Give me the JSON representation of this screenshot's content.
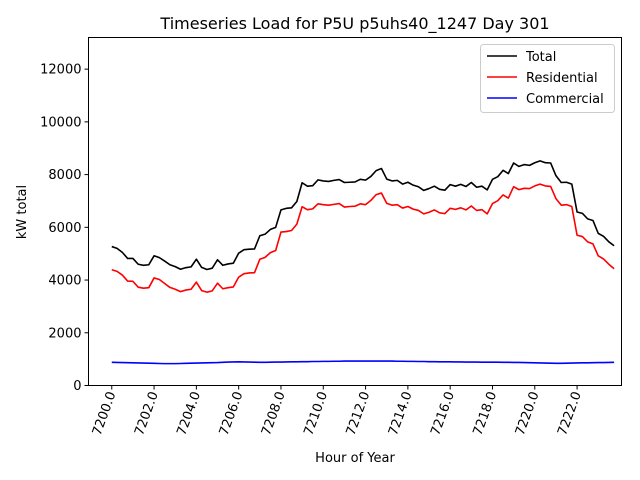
{
  "chart_data": {
    "type": "line",
    "title": "Timeseries Load for P5U p5uhs40_1247  Day 301",
    "xlabel": "Hour of Year",
    "ylabel": "kW total",
    "xlim": [
      7198.9,
      7224.1
    ],
    "ylim": [
      0,
      13200
    ],
    "xticks": [
      7200,
      7202,
      7204,
      7206,
      7208,
      7210,
      7212,
      7214,
      7216,
      7218,
      7220,
      7222
    ],
    "xtick_labels": [
      "7200.0",
      "7202.0",
      "7204.0",
      "7206.0",
      "7208.0",
      "7210.0",
      "7212.0",
      "7214.0",
      "7216.0",
      "7218.0",
      "7220.0",
      "7222.0"
    ],
    "yticks": [
      0,
      2000,
      4000,
      6000,
      8000,
      10000,
      12000
    ],
    "ytick_labels": [
      "0",
      "2000",
      "4000",
      "6000",
      "8000",
      "10000",
      "12000"
    ],
    "legend_position": "top-right",
    "x": [
      7200.0,
      7200.25,
      7200.5,
      7200.75,
      7201.0,
      7201.25,
      7201.5,
      7201.75,
      7202.0,
      7202.25,
      7202.5,
      7202.75,
      7203.0,
      7203.25,
      7203.5,
      7203.75,
      7204.0,
      7204.25,
      7204.5,
      7204.75,
      7205.0,
      7205.25,
      7205.5,
      7205.75,
      7206.0,
      7206.25,
      7206.5,
      7206.75,
      7207.0,
      7207.25,
      7207.5,
      7207.75,
      7208.0,
      7208.25,
      7208.5,
      7208.75,
      7209.0,
      7209.25,
      7209.5,
      7209.75,
      7210.0,
      7210.25,
      7210.5,
      7210.75,
      7211.0,
      7211.25,
      7211.5,
      7211.75,
      7212.0,
      7212.25,
      7212.5,
      7212.75,
      7213.0,
      7213.25,
      7213.5,
      7213.75,
      7214.0,
      7214.25,
      7214.5,
      7214.75,
      7215.0,
      7215.25,
      7215.5,
      7215.75,
      7216.0,
      7216.25,
      7216.5,
      7216.75,
      7217.0,
      7217.25,
      7217.5,
      7217.75,
      7218.0,
      7218.25,
      7218.5,
      7218.75,
      7219.0,
      7219.25,
      7219.5,
      7219.75,
      7220.0,
      7220.25,
      7220.5,
      7220.75,
      7221.0,
      7221.25,
      7221.5,
      7221.75,
      7222.0,
      7222.25,
      7222.5,
      7222.75,
      7223.0,
      7223.25,
      7223.5,
      7223.75
    ],
    "series": [
      {
        "name": "Total",
        "color": "#000000",
        "values": [
          5270,
          5200,
          5050,
          4820,
          4820,
          4600,
          4560,
          4580,
          4920,
          4850,
          4720,
          4580,
          4510,
          4410,
          4470,
          4500,
          4790,
          4480,
          4400,
          4450,
          4770,
          4560,
          4610,
          4640,
          5020,
          5150,
          5170,
          5180,
          5680,
          5740,
          5920,
          6000,
          6660,
          6720,
          6740,
          6980,
          7690,
          7560,
          7580,
          7800,
          7760,
          7740,
          7780,
          7810,
          7700,
          7710,
          7720,
          7820,
          7790,
          7930,
          8150,
          8230,
          7830,
          7760,
          7780,
          7640,
          7710,
          7600,
          7540,
          7400,
          7470,
          7560,
          7440,
          7410,
          7620,
          7560,
          7630,
          7550,
          7700,
          7520,
          7560,
          7420,
          7820,
          7920,
          8160,
          8040,
          8440,
          8310,
          8380,
          8350,
          8450,
          8520,
          8450,
          8440,
          7960,
          7700,
          7710,
          7640,
          6580,
          6530,
          6320,
          6260,
          5770,
          5660,
          5450,
          5300
        ]
      },
      {
        "name": "Residential",
        "color": "#ff0000",
        "values": [
          4390,
          4330,
          4190,
          3960,
          3950,
          3730,
          3690,
          3710,
          4080,
          4020,
          3870,
          3720,
          3650,
          3560,
          3620,
          3650,
          3920,
          3600,
          3540,
          3590,
          3880,
          3670,
          3710,
          3740,
          4110,
          4240,
          4270,
          4280,
          4790,
          4860,
          5040,
          5120,
          5820,
          5840,
          5880,
          6120,
          6780,
          6670,
          6700,
          6890,
          6860,
          6840,
          6870,
          6900,
          6770,
          6790,
          6800,
          6890,
          6860,
          7020,
          7240,
          7300,
          6910,
          6840,
          6860,
          6730,
          6790,
          6690,
          6640,
          6510,
          6570,
          6660,
          6550,
          6520,
          6720,
          6680,
          6740,
          6660,
          6810,
          6640,
          6670,
          6510,
          6900,
          7010,
          7230,
          7110,
          7540,
          7430,
          7480,
          7470,
          7570,
          7640,
          7570,
          7550,
          7090,
          6840,
          6860,
          6790,
          5700,
          5650,
          5450,
          5370,
          4920,
          4800,
          4600,
          4430
        ]
      },
      {
        "name": "Commercial",
        "color": "#0000ff",
        "values": [
          880,
          875,
          870,
          865,
          860,
          855,
          850,
          845,
          840,
          835,
          830,
          830,
          830,
          835,
          840,
          845,
          850,
          855,
          860,
          865,
          870,
          880,
          890,
          895,
          900,
          895,
          890,
          885,
          880,
          880,
          885,
          890,
          890,
          895,
          900,
          900,
          905,
          905,
          910,
          910,
          915,
          915,
          920,
          920,
          925,
          925,
          925,
          925,
          925,
          925,
          925,
          925,
          925,
          925,
          920,
          920,
          915,
          915,
          910,
          910,
          905,
          905,
          900,
          900,
          900,
          895,
          895,
          890,
          890,
          890,
          885,
          885,
          885,
          885,
          880,
          880,
          875,
          875,
          870,
          865,
          860,
          855,
          850,
          845,
          840,
          840,
          845,
          850,
          855,
          860,
          860,
          865,
          870,
          870,
          875,
          880
        ]
      }
    ]
  }
}
